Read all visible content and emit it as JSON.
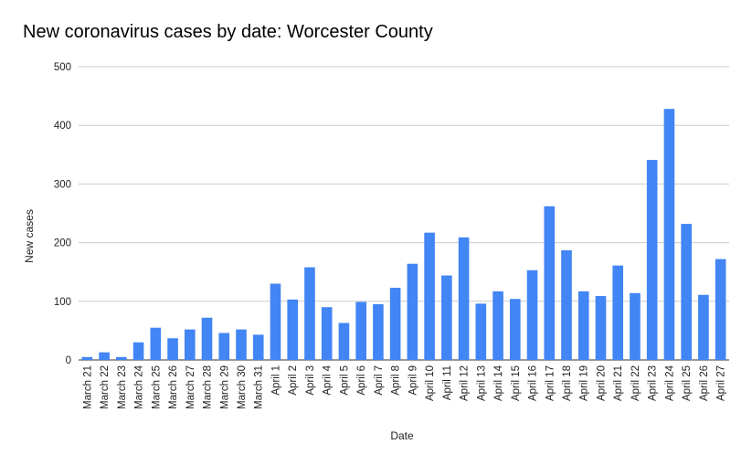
{
  "chart_data": {
    "type": "bar",
    "title": "New coronavirus cases by date: Worcester County",
    "xlabel": "Date",
    "ylabel": "New cases",
    "ylim": [
      0,
      500
    ],
    "yticks": [
      0,
      100,
      200,
      300,
      400,
      500
    ],
    "grid": true,
    "legend": "none",
    "bar_color": "#4285f4",
    "categories": [
      "March 21",
      "March 22",
      "March 23",
      "March 24",
      "March 25",
      "March 26",
      "March 27",
      "March 28",
      "March 29",
      "March 30",
      "March 31",
      "April 1",
      "April 2",
      "April 3",
      "April 4",
      "April 5",
      "April 6",
      "April 7",
      "April 8",
      "April 9",
      "April 10",
      "April 11",
      "April 12",
      "April 13",
      "April 14",
      "April 15",
      "April 16",
      "April 17",
      "April 18",
      "April 19",
      "April 20",
      "April 21",
      "April 22",
      "April 23",
      "April 24",
      "April 25",
      "April 26",
      "April 27"
    ],
    "values": [
      5,
      13,
      5,
      30,
      55,
      37,
      52,
      72,
      46,
      52,
      43,
      130,
      103,
      158,
      90,
      63,
      99,
      95,
      123,
      164,
      217,
      144,
      209,
      96,
      117,
      104,
      153,
      262,
      187,
      117,
      109,
      161,
      114,
      341,
      428,
      232,
      111,
      172
    ]
  }
}
